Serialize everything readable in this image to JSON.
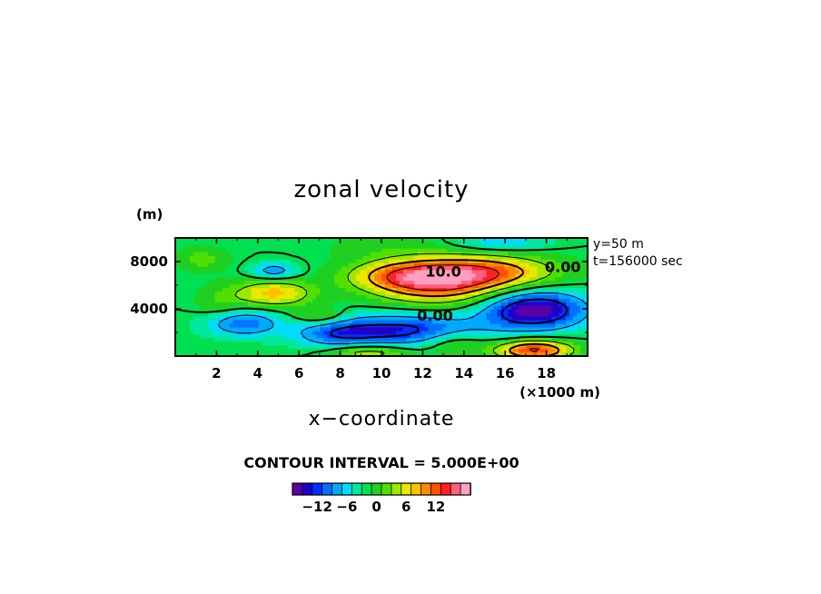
{
  "chart_data": {
    "type": "heatmap",
    "title": "zonal velocity",
    "xlabel": "x−coordinate",
    "x_units": "(×1000 m)",
    "y_units": "(m)",
    "xlim": [
      0,
      20
    ],
    "ylim": [
      0,
      10000
    ],
    "x_ticks": [
      2,
      4,
      6,
      8,
      10,
      12,
      14,
      16,
      18
    ],
    "x_tick_labels": [
      "2",
      "4",
      "6",
      "8",
      "10",
      "12",
      "14",
      "16",
      "18"
    ],
    "y_ticks": [
      4000,
      8000
    ],
    "y_tick_labels": [
      "4000",
      "8000"
    ],
    "info_lines": [
      "y=50  m",
      "t=156000 sec"
    ],
    "contour_interval_text": "CONTOUR INTERVAL = 5.000E+00",
    "contour_labels": [
      {
        "text": "10.0",
        "x": 13.0,
        "y": 7100
      },
      {
        "text": "0.00",
        "x": 12.6,
        "y": 3400
      },
      {
        "text": "0.00",
        "x": 18.8,
        "y": 7500
      }
    ],
    "colorbar": {
      "range": [
        -15,
        15
      ],
      "step": 2,
      "tick_values": [
        -12,
        -6,
        0,
        6,
        12
      ],
      "tick_labels": [
        "−12",
        "−6",
        "0",
        "6",
        "12"
      ]
    },
    "features": [
      {
        "x": 12.8,
        "y": 6200,
        "sx": 2.2,
        "sy": 1300,
        "amp": 13
      },
      {
        "x": 15.2,
        "y": 7100,
        "sx": 2.4,
        "sy": 1000,
        "amp": 11
      },
      {
        "x": 10.8,
        "y": 6800,
        "sx": 1.8,
        "sy": 900,
        "amp": 8
      },
      {
        "x": 4.8,
        "y": 5300,
        "sx": 1.3,
        "sy": 800,
        "amp": 10
      },
      {
        "x": 7.0,
        "y": 3400,
        "sx": 0.9,
        "sy": 500,
        "amp": 5
      },
      {
        "x": 17.4,
        "y": 500,
        "sx": 1.3,
        "sy": 600,
        "amp": 16
      },
      {
        "x": 9.4,
        "y": 300,
        "sx": 1.4,
        "sy": 500,
        "amp": 8
      },
      {
        "x": 13.5,
        "y": 1100,
        "sx": 1.1,
        "sy": 700,
        "amp": 5
      },
      {
        "x": 17.4,
        "y": 3900,
        "sx": 1.8,
        "sy": 1200,
        "amp": -15
      },
      {
        "x": 11.0,
        "y": 2200,
        "sx": 2.6,
        "sy": 1000,
        "amp": -11
      },
      {
        "x": 3.2,
        "y": 2800,
        "sx": 1.3,
        "sy": 800,
        "amp": -9
      },
      {
        "x": 4.8,
        "y": 7200,
        "sx": 0.8,
        "sy": 500,
        "amp": -7
      },
      {
        "x": 7.8,
        "y": 1800,
        "sx": 1.4,
        "sy": 800,
        "amp": -6
      },
      {
        "x": 15.8,
        "y": 9600,
        "sx": 1.6,
        "sy": 500,
        "amp": -5
      },
      {
        "x": 1.3,
        "y": 8200,
        "sx": 0.9,
        "sy": 700,
        "amp": 4
      },
      {
        "x": 10.0,
        "y": 9300,
        "sx": 2.0,
        "sy": 700,
        "amp": 2
      },
      {
        "x": 2.2,
        "y": 4300,
        "sx": 0.9,
        "sy": 1200,
        "amp": 3
      }
    ],
    "grid": false
  },
  "colors": {
    "palette": [
      "#5a00a8",
      "#2000c8",
      "#0030ff",
      "#0070ff",
      "#00a8ff",
      "#00dcff",
      "#00e8a0",
      "#00e050",
      "#20d020",
      "#50e000",
      "#a0e800",
      "#e8e800",
      "#ffc000",
      "#ff8800",
      "#ff5000",
      "#ff2020",
      "#ff6080",
      "#ffa0c0"
    ]
  }
}
